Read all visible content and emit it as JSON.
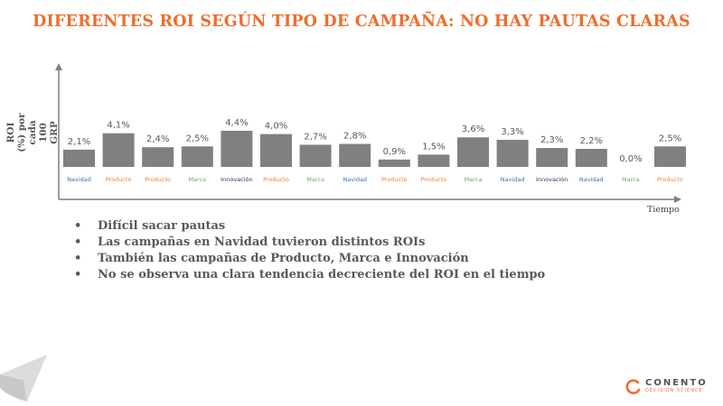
{
  "title": "DIFERENTES ROI SEGÚN TIPO DE CAMPAÑA: NO HAY PAUTAS CLARAS",
  "chart_data": {
    "type": "bar",
    "ylabel": "ROI (%) por cada 100 GRP",
    "xlabel": "Tiempo",
    "values": [
      2.1,
      4.1,
      2.4,
      2.5,
      4.4,
      4.0,
      2.7,
      2.8,
      0.9,
      1.5,
      3.6,
      3.3,
      2.3,
      2.2,
      0.0,
      2.5
    ],
    "value_labels": [
      "2,1%",
      "4,1%",
      "2,4%",
      "2,5%",
      "4,4%",
      "4,0%",
      "2,7%",
      "2,8%",
      "0,9%",
      "1,5%",
      "3,6%",
      "3,3%",
      "2,3%",
      "2,2%",
      "0,0%",
      "2,5%"
    ],
    "categories": [
      "Navidad",
      "Producto",
      "Producto",
      "Marca",
      "Innovación",
      "Producto",
      "Marca",
      "Navidad",
      "Producto",
      "Producto",
      "Marca",
      "Navidad",
      "Innovación",
      "Navidad",
      "Marca",
      "Producto"
    ],
    "category_colors": {
      "Navidad": "#2e75b6",
      "Producto": "#ed7d31",
      "Marca": "#70ad47",
      "Innovación": "#1f3864"
    },
    "bar_color": "#808080",
    "grid": false
  },
  "bullets": [
    "Difícil sacar pautas",
    "Las campañas en Navidad tuvieron distintos ROIs",
    "También las campañas de Producto, Marca e Innovación",
    "No se observa una clara tendencia decreciente del ROI en el tiempo"
  ],
  "logo": {
    "name": "CONENTO",
    "tagline": "DECISION SCIENCE"
  },
  "colors": {
    "title": "#ec6e2d",
    "axis": "#7f7f7f",
    "text": "#595959"
  }
}
